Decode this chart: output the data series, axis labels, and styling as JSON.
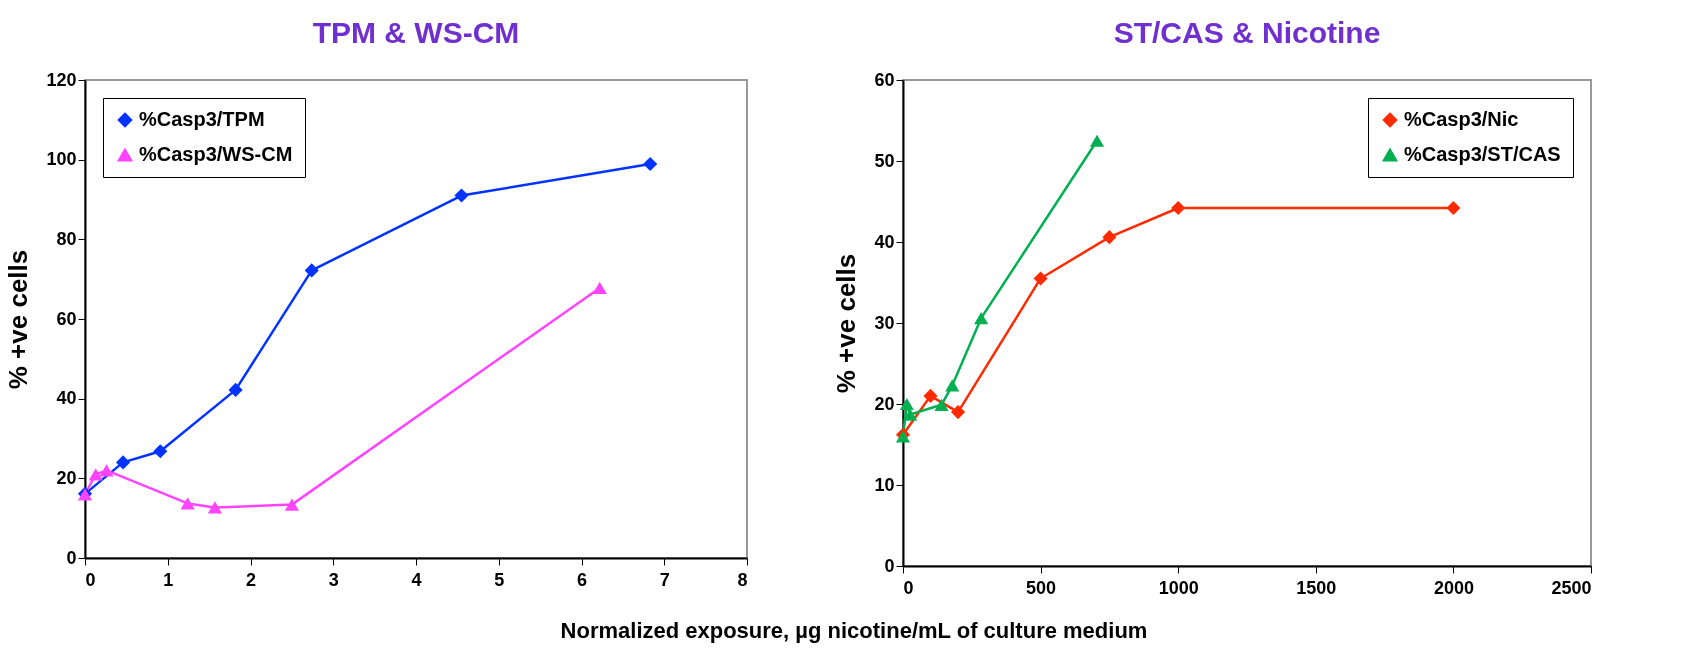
{
  "chart_data": [
    {
      "type": "line",
      "title": "TPM & WS-CM",
      "xlabel": "Normalized exposure, µg nicotine/mL of culture medium",
      "ylabel": "% +ve cells",
      "xlim": [
        0,
        8
      ],
      "xticks": [
        0,
        1,
        2,
        3,
        4,
        5,
        6,
        7,
        8
      ],
      "ylim": [
        0,
        120
      ],
      "yticks": [
        0,
        20,
        40,
        60,
        80,
        100,
        120
      ],
      "grid": false,
      "legend": "top left",
      "series": [
        {
          "name": "%Casp3/TPM",
          "color": "#0033ff",
          "marker": "diamond",
          "x": [
            0,
            0.46,
            0.91,
            1.82,
            2.74,
            4.55,
            6.83
          ],
          "values": [
            16.1,
            24,
            26.8,
            42.2,
            72.2,
            91,
            98.9
          ]
        },
        {
          "name": "%Casp3/WS-CM",
          "color": "#ff44ff",
          "marker": "triangle",
          "x": [
            0,
            0.13,
            0.26,
            1.24,
            1.57,
            2.5,
            6.22
          ],
          "values": [
            16,
            21,
            22,
            13.7,
            12.7,
            13.4,
            67.8
          ]
        }
      ]
    },
    {
      "type": "line",
      "title": "ST/CAS & Nicotine",
      "ylabel": "% +ve cells",
      "xlim": [
        0,
        2500
      ],
      "xticks": [
        0,
        500,
        1000,
        1500,
        2000,
        2500
      ],
      "ylim": [
        0,
        60
      ],
      "yticks": [
        0,
        10,
        20,
        30,
        40,
        50,
        60
      ],
      "grid": false,
      "legend": "top right",
      "series": [
        {
          "name": "%Casp3/Nic",
          "color": "#ff2a00",
          "marker": "diamond",
          "x": [
            0,
            100,
            200,
            500,
            750,
            1000,
            2000
          ],
          "values": [
            16.2,
            21,
            19,
            35.5,
            40.6,
            44.2,
            44.2
          ]
        },
        {
          "name": "%Casp3/ST/CAS",
          "color": "#00b050",
          "marker": "triangle",
          "x": [
            0,
            14,
            26,
            140,
            179,
            284,
            705
          ],
          "values": [
            16,
            20,
            18.7,
            19.9,
            22.3,
            30.6,
            52.5
          ]
        }
      ]
    }
  ]
}
